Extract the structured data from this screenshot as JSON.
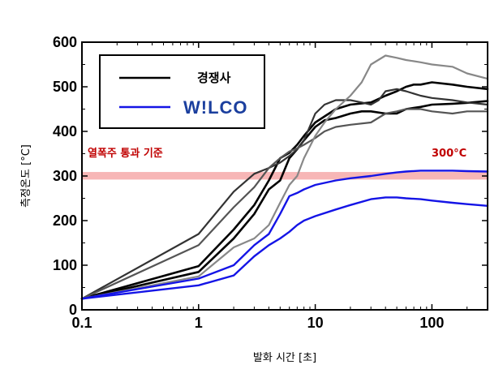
{
  "chart_data": {
    "type": "line",
    "xlabel": "발화 시간 [초]",
    "ylabel": "측정온도 [°C]",
    "xscale": "log",
    "xlim": [
      0.1,
      300
    ],
    "ylim": [
      0,
      600
    ],
    "x_ticks": [
      "0.1",
      "1",
      "10",
      "100"
    ],
    "y_ticks": [
      "0",
      "100",
      "200",
      "300",
      "400",
      "500",
      "600"
    ],
    "legend": {
      "placement": "top-left",
      "entries": [
        {
          "label": "경쟁사",
          "color": "#000000"
        },
        {
          "label": "W!LCO",
          "color": "#1414e6"
        }
      ]
    },
    "annotations": {
      "band_label": "열폭주 통과 기준",
      "band_value_label": "300°C",
      "band_range": [
        292,
        309
      ],
      "band_color": "#f7b6b6"
    },
    "series": [
      {
        "group": "경쟁사",
        "color": "#000000",
        "width": 2.6,
        "x": [
          0.1,
          1,
          2,
          3,
          4,
          5,
          6,
          7,
          8,
          10,
          15,
          20,
          30,
          40,
          50,
          60,
          70,
          80,
          100,
          150,
          200,
          300
        ],
        "y": [
          25,
          98,
          180,
          235,
          290,
          340,
          352,
          370,
          390,
          420,
          450,
          460,
          465,
          480,
          490,
          500,
          505,
          505,
          510,
          505,
          500,
          495
        ]
      },
      {
        "group": "경쟁사",
        "color": "#000000",
        "width": 2.6,
        "x": [
          0.1,
          1,
          2,
          3,
          4,
          5,
          6,
          7,
          8,
          10,
          12,
          15,
          20,
          25,
          30,
          40,
          50,
          60,
          80,
          100,
          150,
          200,
          300
        ],
        "y": [
          25,
          85,
          160,
          215,
          270,
          290,
          340,
          360,
          380,
          410,
          425,
          430,
          440,
          445,
          445,
          440,
          440,
          450,
          455,
          460,
          462,
          464,
          468
        ]
      },
      {
        "group": "경쟁사",
        "color": "#333333",
        "width": 2.2,
        "x": [
          0.1,
          1,
          2,
          3,
          4,
          5,
          6,
          7,
          8,
          10,
          12,
          15,
          20,
          25,
          30,
          35,
          40,
          50,
          60,
          80,
          100,
          150,
          200,
          300
        ],
        "y": [
          25,
          170,
          265,
          305,
          318,
          330,
          345,
          360,
          380,
          440,
          460,
          470,
          470,
          465,
          460,
          470,
          490,
          495,
          490,
          480,
          475,
          470,
          465,
          460
        ]
      },
      {
        "group": "경쟁사",
        "color": "#555555",
        "width": 2.2,
        "x": [
          0.1,
          1,
          2,
          3,
          4,
          5,
          6,
          7,
          8,
          10,
          12,
          15,
          20,
          30,
          40,
          50,
          60,
          80,
          100,
          150,
          200,
          300
        ],
        "y": [
          25,
          145,
          230,
          275,
          318,
          340,
          355,
          362,
          370,
          385,
          400,
          410,
          415,
          420,
          440,
          445,
          450,
          450,
          445,
          440,
          445,
          445
        ]
      },
      {
        "group": "경쟁사",
        "color": "#888888",
        "width": 2.2,
        "x": [
          0.1,
          1,
          2,
          3,
          4,
          5,
          6,
          7,
          8,
          10,
          12,
          15,
          20,
          25,
          30,
          40,
          50,
          60,
          80,
          100,
          150,
          200,
          300
        ],
        "y": [
          25,
          75,
          140,
          160,
          190,
          240,
          280,
          300,
          340,
          390,
          420,
          450,
          480,
          510,
          550,
          570,
          565,
          560,
          555,
          550,
          545,
          530,
          518
        ]
      },
      {
        "group": "W!LCO",
        "color": "#1414e6",
        "width": 2.4,
        "x": [
          0.1,
          1,
          2,
          3,
          4,
          5,
          6,
          7,
          8,
          10,
          15,
          20,
          30,
          40,
          50,
          60,
          80,
          100,
          150,
          200,
          300
        ],
        "y": [
          25,
          70,
          100,
          145,
          170,
          215,
          255,
          262,
          270,
          280,
          290,
          295,
          300,
          305,
          308,
          310,
          312,
          312,
          312,
          311,
          310
        ]
      },
      {
        "group": "W!LCO",
        "color": "#1414e6",
        "width": 2.4,
        "x": [
          0.1,
          1,
          2,
          3,
          4,
          5,
          6,
          7,
          8,
          10,
          15,
          20,
          30,
          40,
          50,
          60,
          80,
          100,
          150,
          200,
          300
        ],
        "y": [
          25,
          55,
          77,
          120,
          145,
          160,
          175,
          190,
          200,
          210,
          225,
          235,
          248,
          252,
          252,
          250,
          248,
          245,
          240,
          237,
          233
        ]
      }
    ]
  }
}
